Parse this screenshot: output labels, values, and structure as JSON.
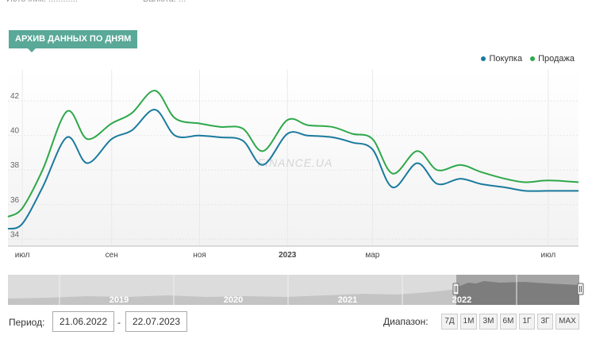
{
  "header": {
    "archive_label": "АРХИВ ДАННЫХ ПО ДНЯМ"
  },
  "watermark": "FINANCE.UA",
  "legend": [
    {
      "label": "Покупка",
      "color": "#1a7a9e"
    },
    {
      "label": "Продажа",
      "color": "#2ea84a"
    }
  ],
  "chart_data": {
    "type": "line",
    "x": [
      "2022-06-21",
      "2022-07-01",
      "2022-07-15",
      "2022-08-01",
      "2022-08-15",
      "2022-09-01",
      "2022-09-15",
      "2022-10-01",
      "2022-10-15",
      "2022-11-01",
      "2022-11-15",
      "2022-12-01",
      "2022-12-15",
      "2023-01-01",
      "2023-01-15",
      "2023-02-01",
      "2023-02-15",
      "2023-03-01",
      "2023-03-15",
      "2023-04-01",
      "2023-04-15",
      "2023-05-01",
      "2023-05-15",
      "2023-06-01",
      "2023-06-15",
      "2023-07-01",
      "2023-07-22"
    ],
    "series": [
      {
        "name": "Покупка",
        "color": "#1a7a9e",
        "values": [
          34.6,
          34.9,
          37.0,
          39.9,
          38.4,
          39.8,
          40.3,
          41.5,
          40.0,
          40.0,
          39.9,
          39.7,
          38.3,
          40.1,
          40.0,
          39.9,
          39.6,
          39.2,
          37.0,
          38.4,
          37.2,
          37.5,
          37.2,
          37.0,
          36.8,
          36.8,
          36.8
        ]
      },
      {
        "name": "Продажа",
        "color": "#2ea84a",
        "values": [
          35.3,
          35.8,
          38.0,
          41.4,
          39.8,
          40.7,
          41.3,
          42.6,
          41.0,
          40.7,
          40.5,
          40.4,
          39.1,
          40.9,
          40.6,
          40.5,
          40.1,
          39.8,
          37.8,
          39.1,
          38.0,
          38.3,
          37.9,
          37.5,
          37.3,
          37.4,
          37.3
        ]
      }
    ],
    "y_ticks": [
      "34",
      "36",
      "38",
      "40",
      "42"
    ],
    "ylim": [
      33.6,
      43.8
    ],
    "x_tick_labels": [
      {
        "label": "июл",
        "date": "2022-07-01"
      },
      {
        "label": "сен",
        "date": "2022-09-01"
      },
      {
        "label": "ноя",
        "date": "2022-11-01"
      },
      {
        "label": "2023",
        "date": "2023-01-01",
        "bold": true
      },
      {
        "label": "мар",
        "date": "2023-03-01"
      },
      {
        "label": "июл",
        "date": "2023-07-01"
      }
    ],
    "grid": true,
    "legend_position": "top-right"
  },
  "navigator": {
    "years": [
      "2019",
      "2020",
      "2021",
      "2022"
    ]
  },
  "controls": {
    "period_label": "Период:",
    "date_from": "21.06.2022",
    "separator": "-",
    "date_to": "22.07.2023",
    "range_label": "Диапазон:",
    "range_buttons": [
      "7Д",
      "1М",
      "3М",
      "6М",
      "1Г",
      "3Г",
      "MAX"
    ]
  }
}
